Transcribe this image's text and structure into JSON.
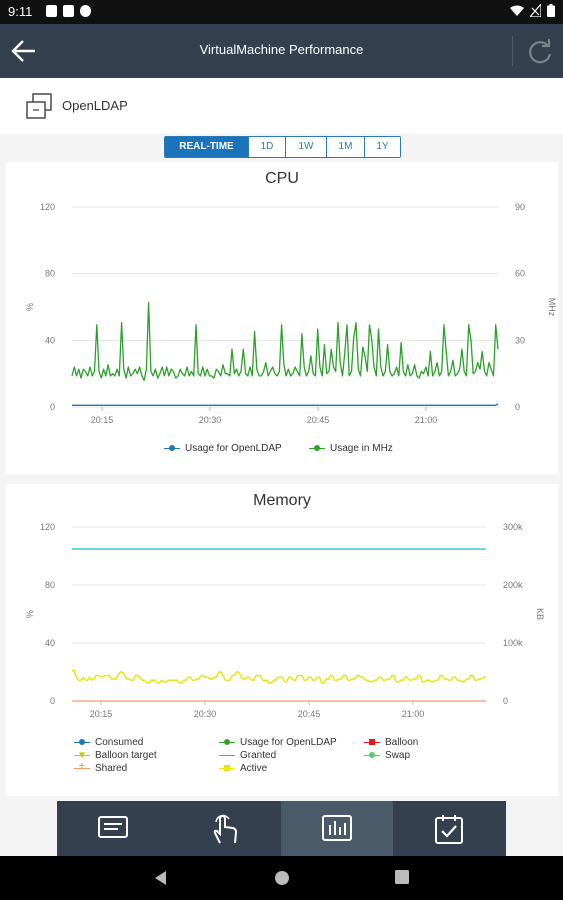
{
  "status_bar": {
    "time": "9:11"
  },
  "app_bar": {
    "title": "VirtualMachine Performance"
  },
  "vm": {
    "name": "OpenLDAP"
  },
  "time_range": {
    "options": [
      "REAL-TIME",
      "1D",
      "1W",
      "1M",
      "1Y"
    ],
    "selected": "REAL-TIME"
  },
  "cpu_chart": {
    "title": "CPU",
    "chart_data": {
      "type": "line",
      "title": "CPU",
      "ylabel_left": "%",
      "ylabel_right": "MHz",
      "ylim_left": [
        0,
        120
      ],
      "ylim_right": [
        0,
        90
      ],
      "yticks_left": [
        "0",
        "40",
        "80",
        "120"
      ],
      "yticks_right": [
        "0",
        "30",
        "60",
        "90"
      ],
      "xticks": [
        "20:15",
        "20:30",
        "20:45",
        "21:00"
      ],
      "grid": true,
      "legend_position": "bottom",
      "series": [
        {
          "name": "Usage for OpenLDAP",
          "color": "#1f78b4",
          "axis": "left",
          "values": [
            1,
            1,
            1,
            1,
            1,
            1,
            1,
            1,
            1,
            1,
            1,
            1,
            1,
            1,
            1,
            1,
            1,
            1,
            1,
            1,
            1,
            1,
            1,
            1,
            1,
            1,
            1,
            1,
            1,
            1,
            1,
            1,
            1,
            1,
            1,
            1,
            1,
            1,
            1,
            1,
            1,
            1,
            1,
            1,
            1,
            1,
            1,
            1,
            1,
            1,
            1,
            1,
            1,
            1,
            1,
            1,
            1,
            1,
            1,
            1,
            1,
            1,
            1,
            1,
            1,
            1,
            1,
            1,
            1,
            1,
            1,
            1,
            1,
            1,
            1,
            1,
            1,
            1,
            1,
            1,
            1,
            1,
            1,
            1,
            1,
            1,
            1,
            1,
            1,
            1,
            1,
            1,
            1,
            1,
            1,
            1,
            1,
            1,
            1,
            1,
            1,
            1,
            1,
            1,
            1,
            1,
            1,
            1,
            1,
            1,
            1,
            1,
            1,
            1,
            1,
            1,
            1,
            1,
            1,
            1,
            1,
            1,
            1,
            1,
            1,
            1,
            1,
            1,
            1,
            1,
            1,
            1,
            1,
            1,
            1,
            1,
            1,
            1,
            1,
            1,
            1,
            1,
            1,
            1,
            1,
            1,
            1,
            1,
            1,
            1,
            1,
            1,
            1,
            1,
            1,
            1,
            1,
            1,
            1,
            1,
            1,
            1,
            1,
            1,
            1,
            1,
            1,
            1,
            1,
            1,
            1,
            1,
            1,
            1,
            1,
            1,
            1,
            1,
            1,
            1,
            2
          ]
        },
        {
          "name": "Usage in MHz",
          "color": "#2ca02c",
          "axis": "right",
          "values": [
            14,
            18,
            14,
            17,
            13,
            17,
            16,
            14,
            18,
            14,
            16,
            37,
            16,
            13,
            17,
            14,
            19,
            14,
            15,
            14,
            17,
            14,
            38,
            17,
            13,
            18,
            14,
            15,
            17,
            15,
            18,
            14,
            12,
            17,
            47,
            16,
            14,
            17,
            13,
            15,
            18,
            14,
            18,
            14,
            17,
            16,
            13,
            14,
            17,
            15,
            14,
            18,
            14,
            16,
            14,
            37,
            15,
            14,
            18,
            14,
            17,
            14,
            14,
            13,
            17,
            16,
            14,
            19,
            15,
            15,
            14,
            26,
            15,
            17,
            14,
            16,
            26,
            15,
            14,
            18,
            14,
            34,
            17,
            14,
            14,
            16,
            20,
            14,
            16,
            18,
            15,
            14,
            16,
            37,
            19,
            14,
            17,
            14,
            15,
            18,
            16,
            14,
            33,
            18,
            14,
            16,
            23,
            15,
            14,
            35,
            18,
            14,
            28,
            15,
            16,
            26,
            18,
            16,
            38,
            20,
            14,
            24,
            37,
            14,
            16,
            31,
            38,
            17,
            14,
            27,
            23,
            16,
            37,
            30,
            18,
            14,
            35,
            18,
            14,
            16,
            28,
            16,
            14,
            15,
            18,
            14,
            29,
            16,
            14,
            19,
            14,
            15,
            19,
            14,
            13,
            16,
            15,
            18,
            14,
            25,
            14,
            16,
            20,
            14,
            16,
            37,
            25,
            14,
            16,
            21,
            14,
            15,
            17,
            26,
            16,
            14,
            37,
            30,
            15,
            16,
            20,
            17,
            25,
            16,
            14,
            20,
            17,
            14,
            37,
            26
          ]
        }
      ]
    }
  },
  "memory_chart": {
    "title": "Memory",
    "chart_data": {
      "type": "line",
      "title": "Memory",
      "ylabel_left": "%",
      "ylabel_right": "KB",
      "ylim_left": [
        0,
        120
      ],
      "ylim_right": [
        0,
        300000
      ],
      "yticks_left": [
        "0",
        "40",
        "80",
        "120"
      ],
      "yticks_right": [
        "0",
        "100k",
        "200k",
        "300k"
      ],
      "xticks": [
        "20:15",
        "20:30",
        "20:45",
        "21:00"
      ],
      "grid": true,
      "legend_position": "bottom",
      "series": [
        {
          "name": "Consumed",
          "color": "#1f78b4",
          "axis": "right",
          "values": []
        },
        {
          "name": "Usage for OpenLDAP",
          "color": "#33a02c",
          "axis": "left",
          "values": []
        },
        {
          "name": "Balloon",
          "color": "#e31a1c",
          "axis": "right",
          "values": []
        },
        {
          "name": "Balloon target",
          "color": "#c8c800",
          "axis": "right",
          "values": [
            52000,
            52000,
            41000,
            36000,
            36000,
            41000,
            36000,
            36000,
            41000,
            36000,
            38000,
            44000,
            44000,
            42000,
            42000,
            44000,
            44000,
            44000,
            38000,
            38000,
            38000,
            44000,
            50000,
            50000,
            44000,
            38000,
            38000,
            36000,
            36000,
            44000,
            44000,
            41000,
            36000,
            36000,
            31000,
            31000,
            36000,
            36000,
            36000,
            31000,
            31000,
            36000,
            33000,
            33000,
            36000,
            36000,
            36000,
            36000,
            36000,
            31000,
            31000,
            36000,
            36000,
            41000,
            41000,
            36000,
            36000,
            38000,
            38000,
            44000,
            44000,
            41000,
            41000,
            38000,
            38000,
            41000,
            41000,
            50000,
            50000,
            44000,
            36000,
            36000,
            36000,
            44000,
            44000,
            50000,
            50000,
            44000,
            38000,
            38000,
            41000,
            41000,
            36000,
            36000,
            44000,
            44000,
            44000,
            36000,
            36000,
            36000,
            31000,
            31000,
            36000,
            36000,
            41000,
            41000,
            41000,
            33000,
            33000,
            41000,
            41000,
            36000,
            36000,
            44000,
            44000,
            44000,
            36000,
            36000,
            41000,
            41000,
            36000,
            36000,
            41000,
            41000,
            31000,
            31000,
            38000,
            38000,
            44000,
            44000,
            36000,
            36000,
            38000,
            38000,
            44000,
            44000,
            36000,
            36000,
            38000,
            38000,
            44000,
            44000,
            41000,
            41000,
            36000,
            36000,
            33000,
            33000,
            36000,
            36000,
            41000,
            41000,
            36000,
            36000,
            38000,
            38000,
            44000,
            44000,
            33000,
            33000,
            36000,
            36000,
            41000,
            41000,
            36000,
            36000,
            38000,
            38000,
            44000,
            44000,
            33000,
            33000,
            36000,
            36000,
            33000,
            33000,
            36000,
            36000,
            44000,
            44000,
            38000,
            38000,
            36000,
            36000,
            41000,
            41000,
            36000,
            36000,
            33000,
            33000,
            38000,
            38000,
            44000,
            44000,
            36000,
            36000,
            38000,
            38000,
            41000,
            41000
          ]
        },
        {
          "name": "Granted",
          "color": "#17becf",
          "axis": "right",
          "values": [
            262144,
            262144
          ]
        },
        {
          "name": "Swap",
          "color": "#4ed070",
          "axis": "right",
          "values": []
        },
        {
          "name": "Shared",
          "color": "#f49a6b",
          "axis": "right",
          "values": [
            0,
            0
          ]
        },
        {
          "name": "Active",
          "color": "#e8e800",
          "axis": "right",
          "values": [
            52000,
            52000,
            41000,
            36000,
            36000,
            41000,
            36000,
            36000,
            41000,
            36000,
            38000,
            44000,
            44000,
            42000,
            42000,
            44000,
            44000,
            44000,
            38000,
            38000,
            38000,
            44000,
            50000,
            50000,
            44000,
            38000,
            38000,
            36000,
            36000,
            44000,
            44000,
            41000,
            36000,
            36000,
            31000,
            31000,
            36000,
            36000,
            36000,
            31000,
            31000,
            36000,
            33000,
            33000,
            36000,
            36000,
            36000,
            36000,
            36000,
            31000,
            31000,
            36000,
            36000,
            41000,
            41000,
            36000,
            36000,
            38000,
            38000,
            44000,
            44000,
            41000,
            41000,
            38000,
            38000,
            41000,
            41000,
            50000,
            50000,
            44000,
            36000,
            36000,
            36000,
            44000,
            44000,
            50000,
            50000,
            44000,
            38000,
            38000,
            41000,
            41000,
            36000,
            36000,
            44000,
            44000,
            44000,
            36000,
            36000,
            36000,
            31000,
            31000,
            36000,
            36000,
            41000,
            41000,
            41000,
            33000,
            33000,
            41000,
            41000,
            36000,
            36000,
            44000,
            44000,
            44000,
            36000,
            36000,
            41000,
            41000,
            36000,
            36000,
            41000,
            41000,
            31000,
            31000,
            38000,
            38000,
            44000,
            44000,
            36000,
            36000,
            38000,
            38000,
            44000,
            44000,
            36000,
            36000,
            38000,
            38000,
            44000,
            44000,
            41000,
            41000,
            36000,
            36000,
            33000,
            33000,
            36000,
            36000,
            41000,
            41000,
            36000,
            36000,
            38000,
            38000,
            44000,
            44000,
            33000,
            33000,
            36000,
            36000,
            41000,
            41000,
            36000,
            36000,
            38000,
            38000,
            44000,
            44000,
            33000,
            33000,
            36000,
            36000,
            33000,
            33000,
            36000,
            36000,
            44000,
            44000,
            38000,
            38000,
            36000,
            36000,
            41000,
            41000,
            36000,
            36000,
            33000,
            33000,
            38000,
            38000,
            44000,
            44000,
            36000,
            36000,
            38000,
            38000,
            41000,
            41000
          ]
        }
      ]
    }
  },
  "bottom_nav": {
    "items": [
      {
        "icon": "summary-icon"
      },
      {
        "icon": "actions-touch-icon"
      },
      {
        "icon": "performance-chart-icon",
        "active": true
      },
      {
        "icon": "tasks-calendar-icon"
      }
    ]
  },
  "colors": {
    "app_bar": "#34404d",
    "accent": "#1b74b9"
  }
}
